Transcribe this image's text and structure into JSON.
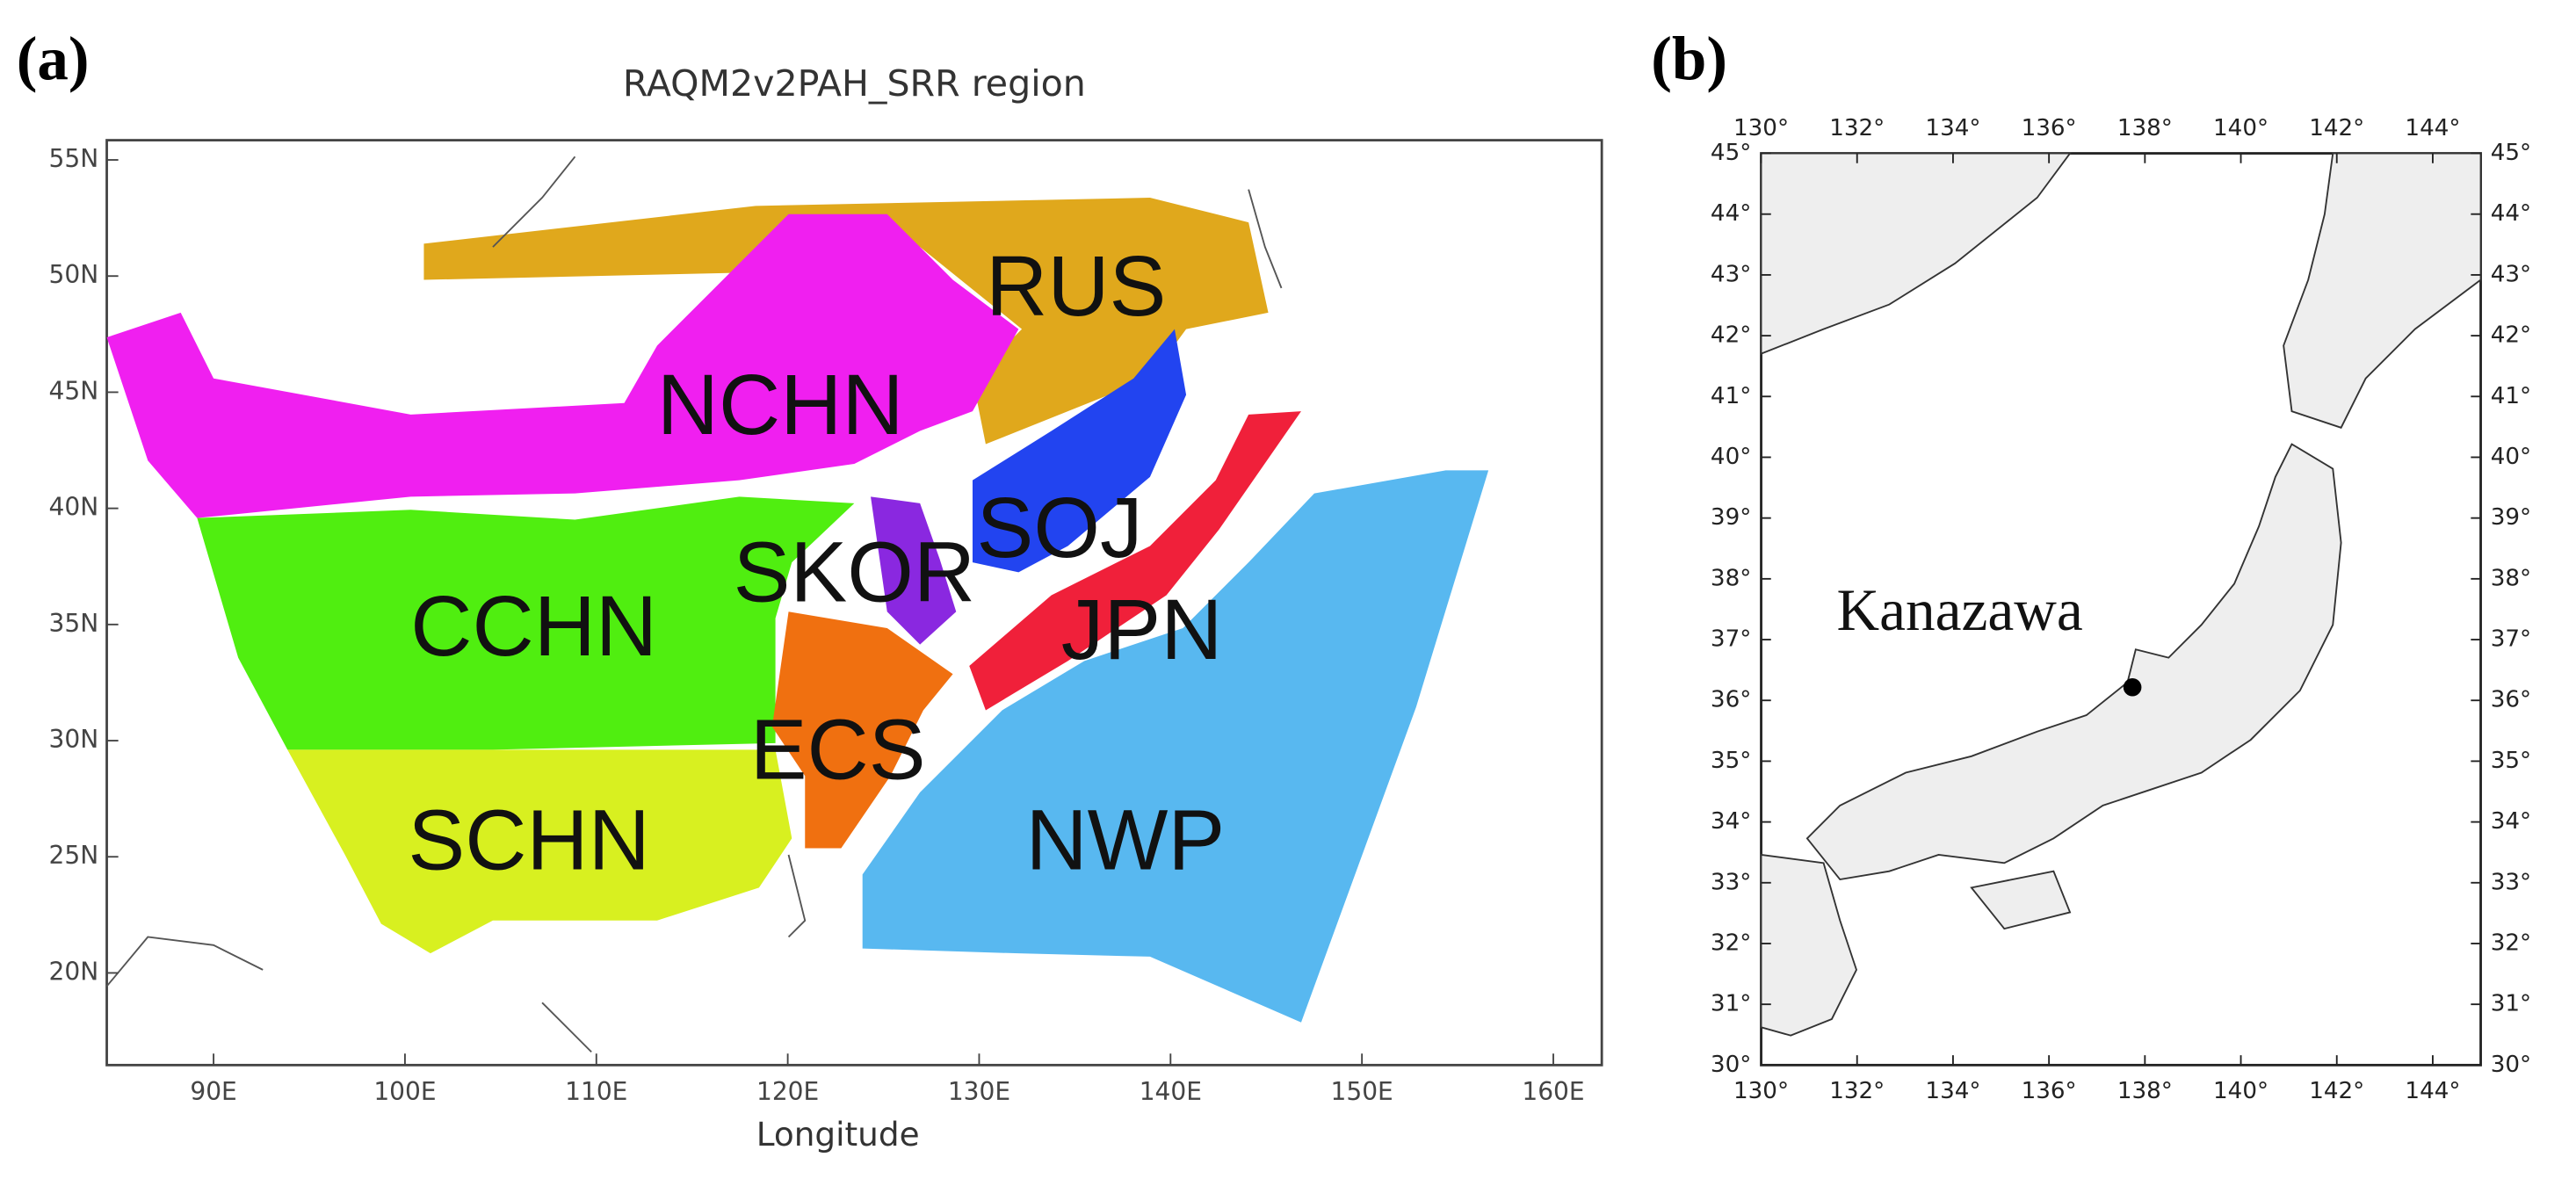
{
  "panels": [
    {
      "label": "(a)",
      "title": "RAQM2v2PAH_SRR region",
      "x_label": "Longitude",
      "x_ticks": [
        "90E",
        "100E",
        "110E",
        "120E",
        "130E",
        "140E",
        "150E",
        "160E"
      ],
      "y_ticks": [
        "55N",
        "50N",
        "45N",
        "40N",
        "35N",
        "30N",
        "25N",
        "20N"
      ],
      "regions": [
        "RUS",
        "NCHN",
        "SOJ",
        "SKOR",
        "CCHN",
        "JPN",
        "ECS",
        "SCHN",
        "NWP"
      ]
    },
    {
      "label": "(b)",
      "x_ticks": [
        "130°",
        "132°",
        "134°",
        "136°",
        "138°",
        "140°",
        "142°",
        "144°"
      ],
      "y_ticks": [
        "45°",
        "44°",
        "43°",
        "42°",
        "41°",
        "40°",
        "39°",
        "38°",
        "37°",
        "36°",
        "35°",
        "34°",
        "33°",
        "32°",
        "31°",
        "30°"
      ],
      "place": "Kanazawa"
    }
  ]
}
